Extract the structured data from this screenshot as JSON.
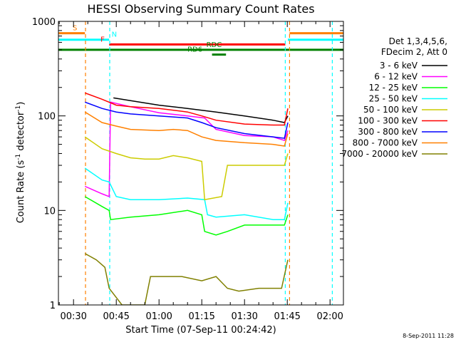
{
  "chart_data": {
    "type": "line",
    "title": "HESSI Observing Summary Count Rates",
    "xlabel": "Start Time (07-Sep-11 00:24:42)",
    "ylabel_main": "Count Rate (s",
    "ylabel_sup1": "-1",
    "ylabel_mid": " detector",
    "ylabel_sup2": "-1",
    "ylabel_end": ")",
    "yscale": "log",
    "ylim": [
      1,
      1000
    ],
    "xlim_minutes": [
      24.7,
      124.7
    ],
    "x_ticks": [
      {
        "label": "00:30",
        "minute": 30
      },
      {
        "label": "00:45",
        "minute": 45
      },
      {
        "label": "01:00",
        "minute": 60
      },
      {
        "label": "01:15",
        "minute": 75
      },
      {
        "label": "01:30",
        "minute": 90
      },
      {
        "label": "01:45",
        "minute": 105
      },
      {
        "label": "02:00",
        "minute": 120
      }
    ],
    "y_ticks": [
      {
        "label": "1",
        "value": 1
      },
      {
        "label": "10",
        "value": 10
      },
      {
        "label": "100",
        "value": 100
      },
      {
        "label": "1000",
        "value": 1000
      }
    ],
    "legend_header": [
      "Det 1,3,4,5,6,",
      "FDecim 2, Att 0"
    ],
    "legend_placement": "right",
    "footer_date": "8-Sep-2011 11:28",
    "series": [
      {
        "name": "3 - 6 keV",
        "color": "#000000",
        "points": [
          [
            44,
            155
          ],
          [
            50,
            145
          ],
          [
            60,
            130
          ],
          [
            70,
            120
          ],
          [
            80,
            110
          ],
          [
            90,
            100
          ],
          [
            100,
            90
          ],
          [
            104,
            85
          ],
          [
            105.2,
            100
          ]
        ]
      },
      {
        "name": "6 - 12 keV",
        "color": "#ff00ff",
        "points": [
          [
            34,
            18
          ],
          [
            40,
            15
          ],
          [
            42.5,
            14
          ],
          [
            43,
            140
          ],
          [
            50,
            125
          ],
          [
            60,
            108
          ],
          [
            70,
            100
          ],
          [
            76,
            95
          ],
          [
            80,
            72
          ],
          [
            90,
            62
          ],
          [
            100,
            60
          ],
          [
            104,
            55
          ],
          [
            105.2,
            70
          ]
        ]
      },
      {
        "name": "12 - 25 keV",
        "color": "#00ff00",
        "points": [
          [
            34,
            14
          ],
          [
            40,
            11
          ],
          [
            42.5,
            10
          ],
          [
            43,
            8
          ],
          [
            50,
            8.5
          ],
          [
            60,
            9
          ],
          [
            70,
            10
          ],
          [
            75,
            9
          ],
          [
            76,
            6
          ],
          [
            80,
            5.5
          ],
          [
            84,
            6
          ],
          [
            90,
            7
          ],
          [
            100,
            7
          ],
          [
            104,
            7
          ],
          [
            105.2,
            9
          ]
        ]
      },
      {
        "name": "25 - 50 keV",
        "color": "#00ffff",
        "points": [
          [
            34,
            28
          ],
          [
            40,
            21
          ],
          [
            42.5,
            20
          ],
          [
            45,
            14
          ],
          [
            50,
            13
          ],
          [
            60,
            13
          ],
          [
            70,
            13.5
          ],
          [
            76,
            13
          ],
          [
            77,
            9
          ],
          [
            80,
            8.5
          ],
          [
            90,
            9
          ],
          [
            100,
            8
          ],
          [
            104,
            8
          ],
          [
            105.2,
            12
          ]
        ]
      },
      {
        "name": "50 - 100 keV",
        "color": "#cccc00",
        "points": [
          [
            34,
            60
          ],
          [
            40,
            45
          ],
          [
            45,
            40
          ],
          [
            50,
            36
          ],
          [
            55,
            35
          ],
          [
            60,
            35
          ],
          [
            65,
            38
          ],
          [
            70,
            36
          ],
          [
            75,
            33
          ],
          [
            76,
            13
          ],
          [
            82,
            14
          ],
          [
            84,
            30
          ],
          [
            90,
            30
          ],
          [
            100,
            30
          ],
          [
            104,
            30
          ],
          [
            105.2,
            40
          ]
        ]
      },
      {
        "name": "100 - 300 keV",
        "color": "#ff0000",
        "points": [
          [
            34,
            175
          ],
          [
            40,
            150
          ],
          [
            45,
            130
          ],
          [
            50,
            125
          ],
          [
            60,
            120
          ],
          [
            70,
            110
          ],
          [
            75,
            100
          ],
          [
            80,
            90
          ],
          [
            90,
            82
          ],
          [
            100,
            80
          ],
          [
            104,
            80
          ],
          [
            105.2,
            120
          ]
        ]
      },
      {
        "name": "300 - 800 keV",
        "color": "#0000ff",
        "points": [
          [
            34,
            140
          ],
          [
            40,
            120
          ],
          [
            45,
            110
          ],
          [
            50,
            105
          ],
          [
            60,
            100
          ],
          [
            70,
            95
          ],
          [
            75,
            85
          ],
          [
            80,
            75
          ],
          [
            90,
            65
          ],
          [
            100,
            60
          ],
          [
            104,
            58
          ],
          [
            105.2,
            85
          ]
        ]
      },
      {
        "name": "800 - 7000 keV",
        "color": "#ff8000",
        "points": [
          [
            34,
            110
          ],
          [
            40,
            85
          ],
          [
            45,
            78
          ],
          [
            50,
            72
          ],
          [
            60,
            70
          ],
          [
            65,
            72
          ],
          [
            70,
            70
          ],
          [
            75,
            60
          ],
          [
            80,
            55
          ],
          [
            90,
            52
          ],
          [
            100,
            50
          ],
          [
            104,
            48
          ],
          [
            105.2,
            65
          ]
        ]
      },
      {
        "name": "7000 - 20000 keV",
        "color": "#808000",
        "points": [
          [
            34,
            3.5
          ],
          [
            38,
            3
          ],
          [
            41,
            2.5
          ],
          [
            42.5,
            1.5
          ],
          [
            47,
            1
          ],
          [
            55,
            1
          ],
          [
            57,
            2
          ],
          [
            68,
            2
          ],
          [
            75,
            1.8
          ],
          [
            80,
            2
          ],
          [
            84,
            1.5
          ],
          [
            88,
            1.4
          ],
          [
            95,
            1.5
          ],
          [
            103,
            1.5
          ],
          [
            105.2,
            3
          ]
        ]
      }
    ],
    "state_bars": [
      {
        "label": "S",
        "color": "#ff8000",
        "x0": 24.7,
        "x1": 34,
        "level": 750,
        "label_minute": 30.5
      },
      {
        "label": "S",
        "color": "#ff8000",
        "x0": 105.8,
        "x1": 124.7,
        "level": 750,
        "label_minute": null
      },
      {
        "label": "N",
        "color": "#00ffff",
        "x0": 24.7,
        "x1": 42.5,
        "level": 640,
        "label_minute": 44.3
      },
      {
        "label": "N",
        "color": "#00ffff",
        "x0": 105.2,
        "x1": 124.7,
        "level": 640,
        "label_minute": null
      },
      {
        "label": "F",
        "color": "#ff0000",
        "x0": 42.5,
        "x1": 104.3,
        "level": 570,
        "label_minute": 40.2
      },
      {
        "label": "RDC",
        "color": "#008000",
        "x0": 24.7,
        "x1": 124.7,
        "level": 500,
        "label_minute": 79.3
      },
      {
        "label": "RD6",
        "color": "#008000",
        "x0": 78.6,
        "x1": 83.5,
        "level": 445,
        "label_minute": 72.6
      }
    ],
    "vertical_markers": [
      {
        "minute": 34.2,
        "color": "#ff8000"
      },
      {
        "minute": 42.7,
        "color": "#00ffff"
      },
      {
        "minute": 104.3,
        "color": "#00ffff"
      },
      {
        "minute": 105.8,
        "color": "#ff8000"
      },
      {
        "minute": 120.8,
        "color": "#00ffff"
      }
    ]
  }
}
